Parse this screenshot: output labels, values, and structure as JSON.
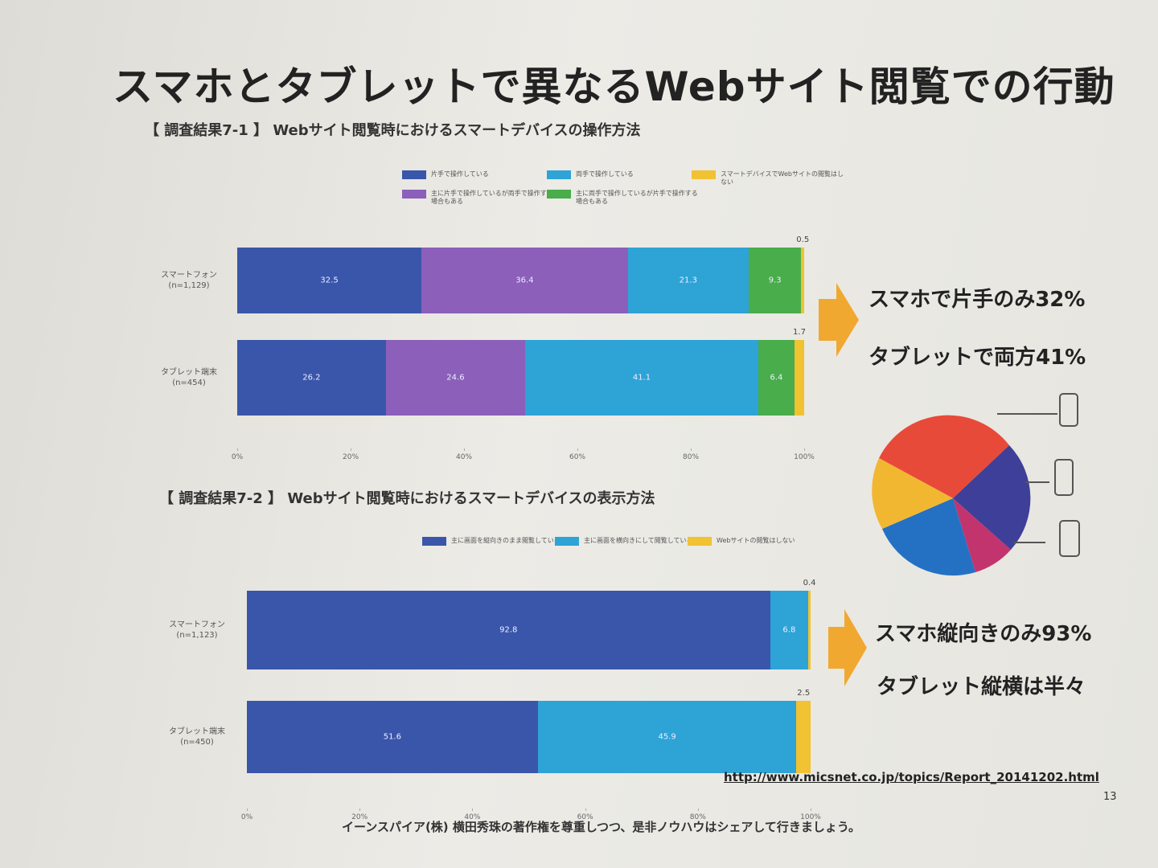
{
  "title": "スマホとタブレットで異なるWebサイト閲覧での行動",
  "chart_data": [
    {
      "type": "bar",
      "orientation": "horizontal",
      "stacked": true,
      "subtitle": "【 調査結果7-1 】 Webサイト閲覧時におけるスマートデバイスの操作方法",
      "categories": [
        "スマートフォン\n(n=1,129)",
        "タブレット端末\n(n=454)"
      ],
      "series": [
        {
          "name": "片手で操作している",
          "color": "#3a56aa",
          "values": [
            32.5,
            26.2
          ]
        },
        {
          "name": "主に片手で操作しているが両手で操作する場合もある",
          "color": "#8b5fba",
          "values": [
            36.4,
            24.6
          ]
        },
        {
          "name": "両手で操作している",
          "color": "#2ea3d6",
          "values": [
            21.3,
            41.1
          ]
        },
        {
          "name": "主に両手で操作しているが片手で操作する場合もある",
          "color": "#48ad4a",
          "values": [
            9.3,
            6.4
          ]
        },
        {
          "name": "スマートデバイスでWebサイトの閲覧はしない",
          "color": "#f1c232",
          "values": [
            0.5,
            1.7
          ]
        }
      ],
      "xlim": [
        0,
        100
      ],
      "xticks": [
        {
          "value": 0,
          "label": "0%"
        },
        {
          "value": 20,
          "label": "20%"
        },
        {
          "value": 40,
          "label": "40%"
        },
        {
          "value": 60,
          "label": "60%"
        },
        {
          "value": 80,
          "label": "80%"
        },
        {
          "value": 100,
          "label": "100%"
        }
      ]
    },
    {
      "type": "bar",
      "orientation": "horizontal",
      "stacked": true,
      "subtitle": "【 調査結果7-2 】 Webサイト閲覧時におけるスマートデバイスの表示方法",
      "categories": [
        "スマートフォン\n(n=1,123)",
        "タブレット端末\n(n=450)"
      ],
      "series": [
        {
          "name": "主に画面を縦向きのまま閲覧している",
          "color": "#3a56aa",
          "values": [
            92.8,
            51.6
          ]
        },
        {
          "name": "主に画面を横向きにして閲覧している",
          "color": "#2ea3d6",
          "values": [
            6.8,
            45.9
          ]
        },
        {
          "name": "Webサイトの閲覧はしない",
          "color": "#f1c232",
          "values": [
            0.4,
            2.5
          ]
        }
      ],
      "xlim": [
        0,
        100
      ],
      "xticks": [
        {
          "value": 0,
          "label": "0%"
        },
        {
          "value": 20,
          "label": "20%"
        },
        {
          "value": 40,
          "label": "40%"
        },
        {
          "value": 60,
          "label": "60%"
        },
        {
          "value": 80,
          "label": "80%"
        },
        {
          "value": 100,
          "label": "100%"
        }
      ]
    }
  ],
  "callouts": [
    "スマホで片手のみ32%",
    "タブレットで両方41%",
    "スマホ縦向きのみ93%",
    "タブレット縦横は半々"
  ],
  "source_url": "http://www.micsnet.co.jp/topics/Report_20141202.html",
  "page_number": "13",
  "footer": "イーンスパイア(株) 横田秀珠の著作権を尊重しつつ、是非ノウハウはシェアして行きましょう。"
}
